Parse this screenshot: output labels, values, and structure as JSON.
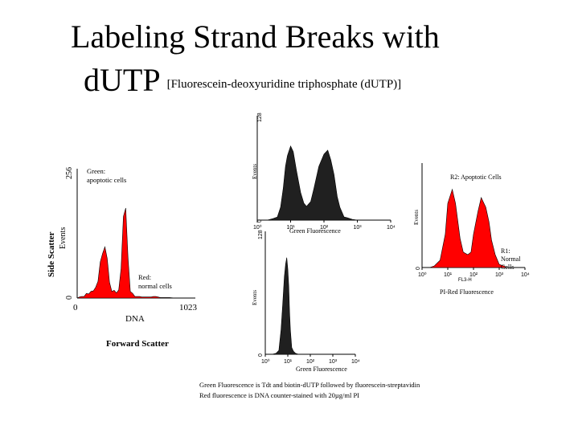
{
  "title": {
    "line1": "Labeling Strand Breaks with",
    "line2": "dUTP",
    "subtitle": "[Fluorescein-deoxyuridine triphosphate (dUTP)]"
  },
  "chart_data": [
    {
      "id": "dna-histogram",
      "type": "area",
      "xlabel": "DNA",
      "ylabel": "Events",
      "xlim": [
        0,
        1023
      ],
      "ylim": [
        0,
        256
      ],
      "xticks": [
        "0",
        "1023"
      ],
      "yticks": [
        "0",
        "256"
      ],
      "fill": "#ff0000",
      "annotations": [
        "Green: apoptotic cells",
        "Red: normal cells",
        "Side Scatter",
        "Forward Scatter"
      ],
      "x": [
        0,
        20,
        40,
        60,
        80,
        100,
        120,
        140,
        160,
        180,
        200,
        220,
        240,
        260,
        280,
        300,
        320,
        340,
        360,
        380,
        400,
        420,
        440,
        460,
        480,
        500,
        520,
        540,
        560,
        580,
        600,
        620,
        640,
        660,
        680,
        700,
        720,
        760,
        800,
        850,
        900,
        950,
        1000,
        1023
      ],
      "values": [
        0,
        2,
        3,
        5,
        8,
        10,
        12,
        16,
        20,
        35,
        70,
        90,
        100,
        80,
        30,
        15,
        14,
        12,
        15,
        60,
        160,
        180,
        80,
        15,
        8,
        5,
        3,
        3,
        2,
        2,
        2,
        2,
        2,
        3,
        3,
        2,
        1,
        1,
        1,
        0,
        0,
        0,
        0,
        0
      ]
    },
    {
      "id": "green-fluor-top",
      "type": "area",
      "xlabel": "Green Fluorescence",
      "ylabel": "Events",
      "xscale": "log",
      "xlim": [
        1,
        10000
      ],
      "ylim": [
        0,
        128
      ],
      "xticks": [
        "10⁰",
        "10¹",
        "10²",
        "10³",
        "10⁴"
      ],
      "yticks": [
        "0",
        "128"
      ],
      "fill": "#202020",
      "x": [
        1,
        2,
        3,
        4,
        5,
        6,
        7,
        8,
        10,
        12,
        15,
        20,
        25,
        30,
        40,
        50,
        70,
        100,
        130,
        160,
        200,
        250,
        300,
        400,
        500,
        700,
        1000,
        1500,
        2000,
        3000,
        5000,
        10000
      ],
      "values": [
        0,
        0,
        2,
        5,
        15,
        40,
        65,
        80,
        90,
        85,
        60,
        35,
        20,
        18,
        22,
        40,
        65,
        82,
        85,
        75,
        55,
        30,
        15,
        5,
        3,
        1,
        0,
        0,
        0,
        0,
        0,
        0
      ]
    },
    {
      "id": "green-fluor-bottom",
      "type": "area",
      "xlabel": "Green Fluorescence",
      "ylabel": "Events",
      "xscale": "log",
      "xlim": [
        1,
        10000
      ],
      "ylim": [
        0,
        128
      ],
      "xticks": [
        "10⁰",
        "10¹",
        "10²",
        "10³",
        "10⁴"
      ],
      "yticks": [
        "0",
        "128"
      ],
      "fill": "#202020",
      "x": [
        1,
        2,
        3,
        4,
        5,
        6,
        7,
        8,
        9,
        10,
        11,
        12,
        13,
        15,
        18,
        22,
        30,
        50,
        100,
        1000,
        10000
      ],
      "values": [
        0,
        0,
        1,
        5,
        25,
        55,
        80,
        95,
        100,
        90,
        70,
        45,
        25,
        8,
        3,
        1,
        0,
        0,
        0,
        0,
        0
      ]
    },
    {
      "id": "pi-red-histogram",
      "type": "area",
      "xlabel": "PI-Red Fluorescence",
      "ylabel": "Events",
      "xscale": "log",
      "xlim": [
        1,
        10000
      ],
      "ylim": [
        0,
        128
      ],
      "xticks": [
        "10⁰",
        "10¹",
        "10²",
        "10³",
        "10⁴"
      ],
      "yticks": [
        "0"
      ],
      "axis_code": "FL3-H",
      "fill": "#ff0000",
      "annotations": [
        "R2: Apoptotic Cells",
        "R1: Normal Cells"
      ],
      "x": [
        1,
        2,
        3,
        5,
        8,
        10,
        15,
        20,
        30,
        40,
        60,
        80,
        100,
        150,
        200,
        300,
        400,
        500,
        700,
        1000,
        1500,
        2000,
        3000,
        5000,
        10000
      ],
      "values": [
        0,
        0,
        2,
        10,
        40,
        80,
        95,
        80,
        35,
        20,
        15,
        20,
        40,
        70,
        85,
        75,
        55,
        35,
        15,
        5,
        2,
        0,
        0,
        0,
        0
      ]
    }
  ],
  "footnote": {
    "line1": "Green Fluorescence is  Tdt and biotin-dUTP  followed by fluorescein-streptavidin",
    "line2": "Red fluorescence is DNA counter-stained with 20µg/ml PI"
  }
}
